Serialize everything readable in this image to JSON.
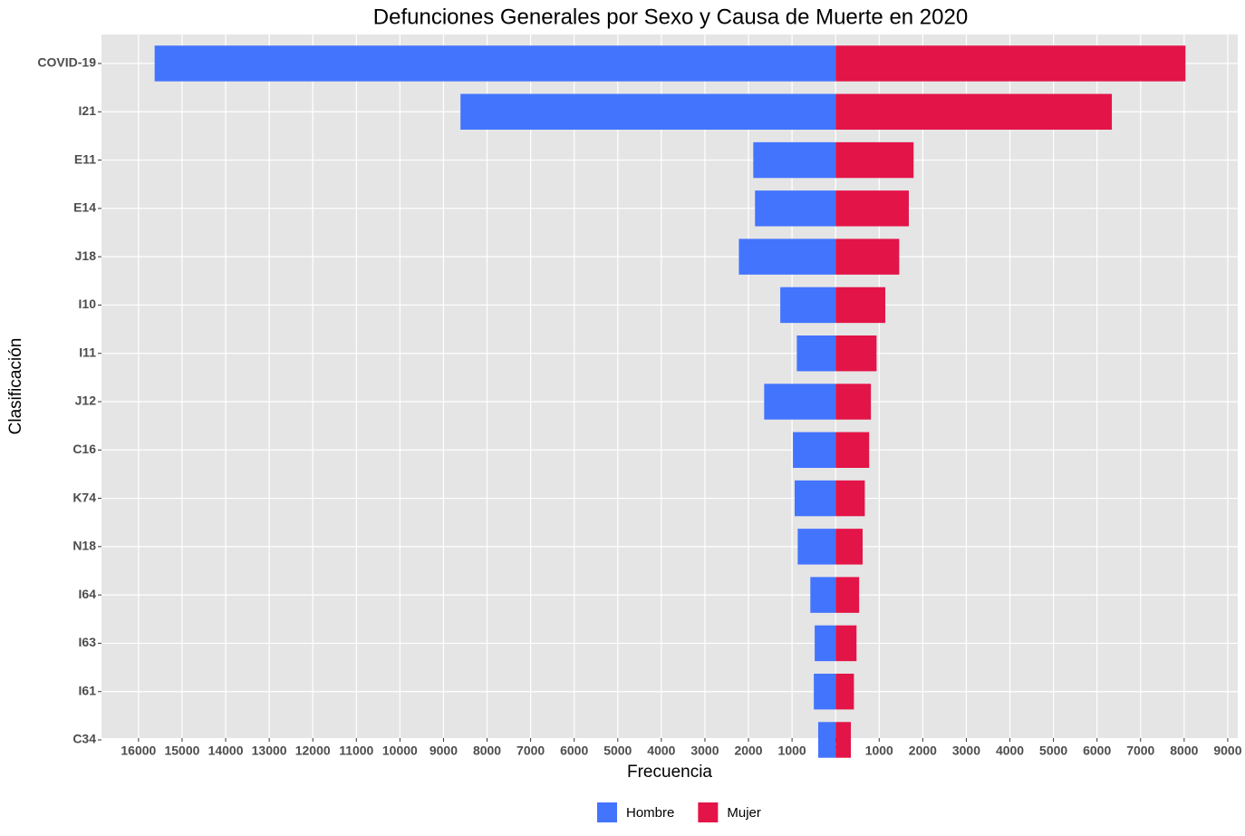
{
  "chart_data": {
    "type": "bar",
    "orientation": "horizontal",
    "title": "Defunciones Generales por Sexo y Causa de Muerte en 2020",
    "x_label": "Frecuencia",
    "y_label": "Clasificación",
    "categories": [
      "COVID-19",
      "I21",
      "E11",
      "E14",
      "J18",
      "I10",
      "I11",
      "J12",
      "C16",
      "K74",
      "N18",
      "I64",
      "I63",
      "I61",
      "C34"
    ],
    "series": [
      {
        "name": "Hombre",
        "color": "#4374fe",
        "values": [
          -15630,
          -8610,
          -1890,
          -1850,
          -2220,
          -1270,
          -890,
          -1640,
          -980,
          -940,
          -870,
          -580,
          -480,
          -500,
          -400
        ]
      },
      {
        "name": "Mujer",
        "color": "#e31448",
        "values": [
          8030,
          6340,
          1790,
          1680,
          1460,
          1140,
          940,
          810,
          770,
          670,
          620,
          540,
          480,
          420,
          350
        ]
      }
    ],
    "xlim": [
      -16850,
      9230
    ],
    "xticks": [
      {
        "value": -16000,
        "label": "16000"
      },
      {
        "value": -15000,
        "label": "15000"
      },
      {
        "value": -14000,
        "label": "14000"
      },
      {
        "value": -13000,
        "label": "13000"
      },
      {
        "value": -12000,
        "label": "12000"
      },
      {
        "value": -11000,
        "label": "11000"
      },
      {
        "value": -10000,
        "label": "10000"
      },
      {
        "value": -9000,
        "label": "9000"
      },
      {
        "value": -8000,
        "label": "8000"
      },
      {
        "value": -7000,
        "label": "7000"
      },
      {
        "value": -6000,
        "label": "6000"
      },
      {
        "value": -5000,
        "label": "5000"
      },
      {
        "value": -4000,
        "label": "4000"
      },
      {
        "value": -3000,
        "label": "3000"
      },
      {
        "value": -2000,
        "label": "2000"
      },
      {
        "value": -1000,
        "label": "1000"
      },
      0,
      1000,
      2000,
      3000,
      4000,
      5000,
      6000,
      7000,
      8000,
      9000
    ],
    "grid": true,
    "legend": "bottom"
  }
}
